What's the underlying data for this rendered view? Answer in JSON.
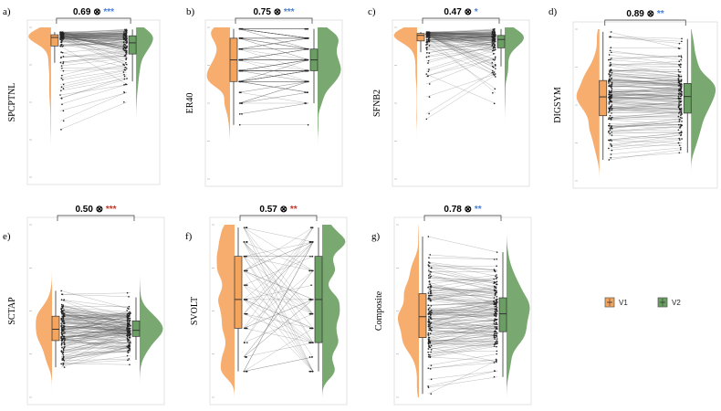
{
  "chart_data": [
    {
      "type": "raincloud-paired",
      "panel_label": "a)",
      "ylabel": "SPCPTNL",
      "correlation": "0.69",
      "stars": "***",
      "star_color": "#4a7fd0",
      "distribution": "ceiling",
      "spread": 0.12,
      "center": 0.95
    },
    {
      "type": "raincloud-paired",
      "panel_label": "b)",
      "ylabel": "ER40",
      "correlation": "0.75",
      "stars": "***",
      "star_color": "#4a7fd0",
      "distribution": "discrete-high",
      "spread": 0.18,
      "center": 0.8
    },
    {
      "type": "raincloud-paired",
      "panel_label": "c)",
      "ylabel": "SFNB2",
      "correlation": "0.47",
      "stars": "*",
      "star_color": "#4a7fd0",
      "distribution": "ceiling",
      "spread": 0.14,
      "center": 0.92
    },
    {
      "type": "raincloud-paired",
      "panel_label": "d)",
      "ylabel": "DIGSYM",
      "correlation": "0.89",
      "stars": "**",
      "star_color": "#4a7fd0",
      "distribution": "normal",
      "spread": 0.18,
      "center": 0.55
    },
    {
      "type": "raincloud-paired",
      "panel_label": "e)",
      "ylabel": "SCTAP",
      "correlation": "0.50",
      "stars": "***",
      "star_color": "#c0392b",
      "distribution": "normal-low",
      "spread": 0.1,
      "center": 0.4
    },
    {
      "type": "raincloud-paired",
      "panel_label": "f)",
      "ylabel": "SVOLT",
      "correlation": "0.57",
      "stars": "**",
      "star_color": "#c0392b",
      "distribution": "discrete-uniform",
      "spread": 0.22,
      "center": 0.55
    },
    {
      "type": "raincloud-paired",
      "panel_label": "g)",
      "ylabel": "Composite",
      "correlation": "0.78",
      "stars": "**",
      "star_color": "#4a7fd0",
      "distribution": "normal",
      "spread": 0.18,
      "center": 0.5
    }
  ],
  "legend": [
    {
      "label": "V1",
      "color": "#f5a45d"
    },
    {
      "label": "V2",
      "color": "#6a9e62"
    }
  ],
  "symbol": "⊗"
}
